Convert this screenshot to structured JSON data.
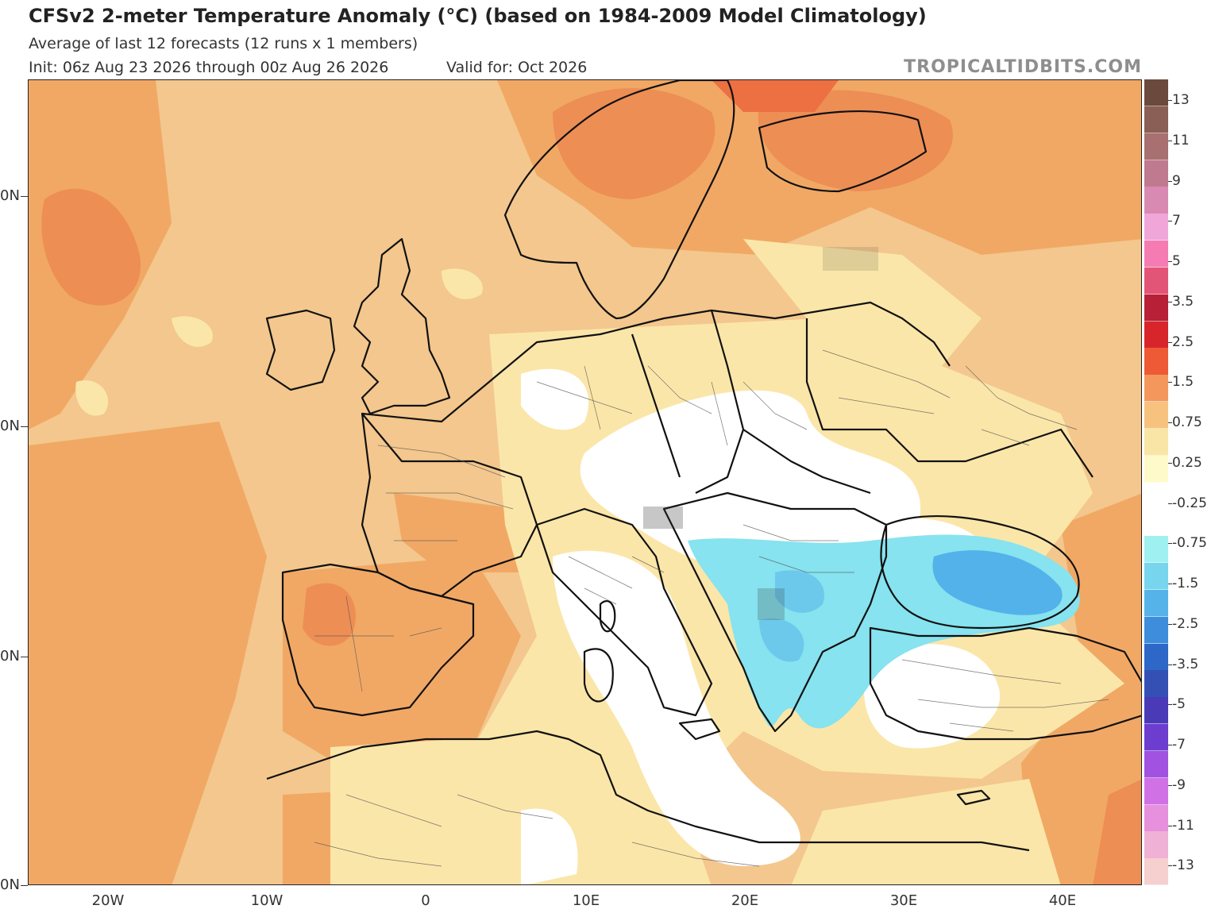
{
  "header": {
    "title": "CFSv2 2-meter Temperature Anomaly (°C) (based on 1984-2009 Model Climatology)",
    "subtitle": "Average of last 12 forecasts (12 runs x 1 members)",
    "init": "Init: 06z Aug 23 2026 through 00z Aug 26 2026",
    "valid": "Valid for: Oct 2026",
    "credit": "TROPICALTIDBITS.COM"
  },
  "map": {
    "lat_labels": [
      "0N",
      "0N",
      "0N",
      "0N"
    ],
    "lon_labels": [
      "20W",
      "10W",
      "0",
      "10E",
      "20E",
      "30E",
      "40E"
    ],
    "colors": {
      "ocean_base": "#f3c78d",
      "warm_1": "#f3b473",
      "warm_2": "#f19a5c",
      "warm_3": "#ec7e45",
      "mild": "#fbe6a9",
      "neutral": "#ffffff",
      "cool_1": "#86e3ef",
      "cool_2": "#53b2ea",
      "border": "#111111"
    }
  },
  "colorbar": {
    "labels": [
      "13",
      "11",
      "9",
      "7",
      "5",
      "3.5",
      "2.5",
      "1.5",
      "0.75",
      "0.25",
      "-0.25",
      "-0.75",
      "-1.5",
      "-2.5",
      "-3.5",
      "-5",
      "-7",
      "-9",
      "-11",
      "-13"
    ],
    "colors": [
      "#6b4a3e",
      "#8a5f55",
      "#a87070",
      "#c07a8f",
      "#d98ab2",
      "#f0a6d8",
      "#f47cb3",
      "#e25577",
      "#b72036",
      "#d8252b",
      "#ee5a36",
      "#f3975d",
      "#f7c27e",
      "#f9e5a5",
      "#fefac9",
      "#ffffff",
      "#ffffff",
      "#9ff0f0",
      "#77d5ee",
      "#55b3e9",
      "#3d8ddc",
      "#2d67c8",
      "#3550b5",
      "#4a3ab8",
      "#6d3dd0",
      "#a152e0",
      "#d071e6",
      "#e790dd",
      "#efb1d6",
      "#f6cfcf"
    ]
  }
}
